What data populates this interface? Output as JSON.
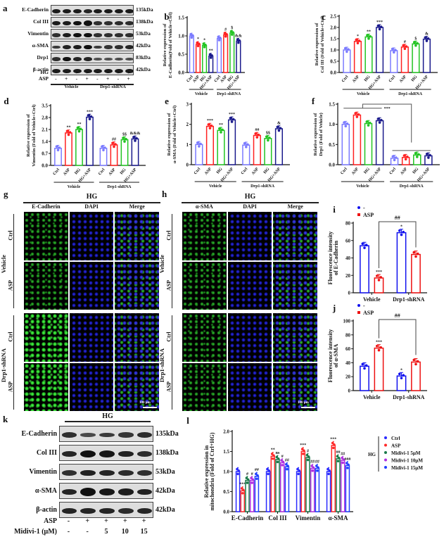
{
  "panel_a": {
    "label": "a",
    "proteins": [
      "E-Cadherin",
      "Col III",
      "Vimentin",
      "α-SMA",
      "Drp1",
      "β-actin"
    ],
    "kda": [
      "135kDa",
      "138kDa",
      "53kDa",
      "42kDa",
      "83kDa",
      "42kDa"
    ],
    "rows": [
      {
        "name": "HG",
        "values": [
          "-",
          "-",
          "+",
          "+",
          "-",
          "-",
          "+",
          "+"
        ]
      },
      {
        "name": "ASP",
        "values": [
          "-",
          "+",
          "-",
          "+",
          "-",
          "+",
          "-",
          "+"
        ]
      }
    ],
    "groups": [
      "Vehicle",
      "Drp1-shRNA"
    ]
  },
  "panel_g": {
    "label": "g",
    "header": "HG",
    "columns": [
      "E-Cadherin",
      "DAPI",
      "Merge"
    ],
    "rows": [
      "Ctrl",
      "ASP",
      "Ctrl",
      "ASP"
    ],
    "groups": [
      "Vehicle",
      "Drp1-shRNA"
    ],
    "scale": "100 μm"
  },
  "panel_h": {
    "label": "h",
    "header": "HG",
    "columns": [
      "α-SMA",
      "DAPI",
      "Merge"
    ],
    "rows": [
      "Ctrl",
      "ASP",
      "Ctrl",
      "ASP"
    ],
    "groups": [
      "Vehicle",
      "Drp1-shRNA"
    ],
    "scale": "100 μm"
  },
  "panel_k": {
    "label": "k",
    "header": "HG",
    "proteins": [
      "E-Cadherin",
      "Col III",
      "Vimentin",
      "α-SMA",
      "β-actin"
    ],
    "kda": [
      "135kDa",
      "138kDa",
      "53kDa",
      "42kDa",
      "42kDa"
    ],
    "rows": [
      {
        "name": "ASP",
        "values": [
          "-",
          "+",
          "+",
          "+",
          "+"
        ]
      },
      {
        "name": "Midivi-1 (μM)",
        "values": [
          "-",
          "-",
          "5",
          "10",
          "15"
        ]
      }
    ]
  },
  "chart_data": [
    {
      "panel": "b",
      "type": "bar",
      "categories": [
        "Ctrl",
        "ASP",
        "HG",
        "HG+ASP",
        "Ctrl",
        "ASP",
        "HG",
        "HG+ASP"
      ],
      "groups": [
        "Vehicle",
        "Drp1-shRNA"
      ],
      "values": [
        1.0,
        0.77,
        0.74,
        0.45,
        0.93,
        1.03,
        1.08,
        0.86
      ],
      "significance": [
        "",
        "*",
        "*",
        "**",
        "",
        "#",
        "$",
        "&&"
      ],
      "colors": [
        "#7b7bff",
        "#ff2020",
        "#22c422",
        "#1a1a8c",
        "#7b7bff",
        "#ff2020",
        "#22c422",
        "#1a1a8c"
      ],
      "ylabel": [
        "Relative expression of",
        "E-Cadherin(Fold of Vehicle+Ctrl)"
      ],
      "ylim": [
        0,
        1.5
      ],
      "yticks": [
        "0.0",
        "0.5",
        "1.0",
        "1.5"
      ]
    },
    {
      "panel": "c",
      "type": "bar",
      "categories": [
        "Ctrl",
        "ASP",
        "HG",
        "HG+ASP",
        "Ctrl",
        "ASP",
        "HG",
        "HG+ASP"
      ],
      "groups": [
        "Vehicle",
        "Drp1-shRNA"
      ],
      "values": [
        1.0,
        1.38,
        1.58,
        2.0,
        0.97,
        1.13,
        1.27,
        1.48
      ],
      "significance": [
        "",
        "*",
        "**",
        "***",
        "",
        "#",
        "$",
        "&"
      ],
      "colors": [
        "#7b7bff",
        "#ff2020",
        "#22c422",
        "#1a1a8c",
        "#7b7bff",
        "#ff2020",
        "#22c422",
        "#1a1a8c"
      ],
      "ylabel": [
        "Relative expression of",
        "Col III (Fold of Vehicle+Ctrl)"
      ],
      "ylim": [
        0,
        2.5
      ],
      "yticks": [
        "0.0",
        "0.5",
        "1.0",
        "1.5",
        "2.0",
        "2.5"
      ]
    },
    {
      "panel": "d",
      "type": "bar",
      "categories": [
        "Ctrl",
        "ASP",
        "HG",
        "HG+ASP",
        "Ctrl",
        "ASP",
        "HG",
        "HG+ASP"
      ],
      "groups": [
        "Vehicle",
        "Drp1-shRNA"
      ],
      "values": [
        1.0,
        1.9,
        2.1,
        2.82,
        1.0,
        1.2,
        1.5,
        1.55
      ],
      "significance": [
        "",
        "**",
        "**",
        "***",
        "",
        "##",
        "$$",
        "&&&"
      ],
      "colors": [
        "#7b7bff",
        "#ff2020",
        "#22c422",
        "#1a1a8c",
        "#7b7bff",
        "#ff2020",
        "#22c422",
        "#1a1a8c"
      ],
      "ylabel": [
        "Relative expression of",
        "Vimentin (Fold of Vehicle+Ctrl)"
      ],
      "ylim": [
        0,
        3.5
      ],
      "yticks": [
        "0.0",
        "0.7",
        "1.4",
        "2.1",
        "2.8",
        "3.5"
      ]
    },
    {
      "panel": "e",
      "type": "bar",
      "categories": [
        "Ctrl",
        "ASP",
        "HG",
        "HG+ASP",
        "Ctrl",
        "ASP",
        "HG",
        "HG+ASP"
      ],
      "groups": [
        "Vehicle",
        "Drp1-shRNA"
      ],
      "values": [
        1.0,
        1.9,
        1.7,
        2.22,
        0.97,
        1.45,
        1.3,
        1.78
      ],
      "significance": [
        "",
        "***",
        "**",
        "***",
        "",
        "##",
        "$$",
        "&"
      ],
      "colors": [
        "#7b7bff",
        "#ff2020",
        "#22c422",
        "#1a1a8c",
        "#7b7bff",
        "#ff2020",
        "#22c422",
        "#1a1a8c"
      ],
      "ylabel": [
        "Relative expression of",
        "α-SMA (Fold of Vehicle+Ctrl)"
      ],
      "ylim": [
        0,
        3
      ],
      "yticks": [
        "0",
        "1",
        "2",
        "3"
      ]
    },
    {
      "panel": "f",
      "type": "bar",
      "categories": [
        "Ctrl",
        "ASP",
        "HG",
        "HG+ASP",
        "Ctrl",
        "ASP",
        "HG",
        "HG+ASP"
      ],
      "groups": [
        "Vehicle",
        "Drp1-shRNA"
      ],
      "values": [
        1.0,
        1.23,
        1.02,
        1.09,
        0.16,
        0.18,
        0.24,
        0.22
      ],
      "significance": [
        "",
        "",
        "",
        "",
        "",
        "",
        "",
        ""
      ],
      "colors": [
        "#7b7bff",
        "#ff2020",
        "#22c422",
        "#1a1a8c",
        "#7b7bff",
        "#ff2020",
        "#22c422",
        "#1a1a8c"
      ],
      "ylabel": [
        "Relative expression of",
        "Drp1 (Fold of Vehicle)"
      ],
      "ylim": [
        0,
        1.5
      ],
      "yticks": [
        "0.0",
        "0.5",
        "1.0",
        "1.5"
      ],
      "annotation": "***"
    },
    {
      "panel": "i",
      "type": "bar",
      "categories": [
        "Vehicle",
        "Drp1-shRNA"
      ],
      "series": [
        {
          "name": "-",
          "values": [
            54,
            69
          ],
          "color": "#1010ee",
          "significance": [
            "",
            "*"
          ]
        },
        {
          "name": "ASP",
          "values": [
            17,
            44
          ],
          "color": "#ee1010",
          "significance": [
            "***",
            ""
          ]
        }
      ],
      "bracket": "##",
      "ylabel": [
        "Fluorescence intensity",
        "of E-Cadherin"
      ],
      "ylim": [
        0,
        80
      ],
      "yticks": [
        "0",
        "20",
        "40",
        "60",
        "80"
      ],
      "legend": "top-left"
    },
    {
      "panel": "j",
      "type": "bar",
      "categories": [
        "Vehicle",
        "Drp1-shRNA"
      ],
      "series": [
        {
          "name": "-",
          "values": [
            35,
            21
          ],
          "color": "#1010ee",
          "significance": [
            "",
            "*"
          ]
        },
        {
          "name": "ASP",
          "values": [
            61,
            41
          ],
          "color": "#ee1010",
          "significance": [
            "***",
            ""
          ]
        }
      ],
      "bracket": "##",
      "ylabel": [
        "Fluorescence intensity",
        "of α-SMA"
      ],
      "ylim": [
        0,
        100
      ],
      "yticks": [
        "0",
        "20",
        "40",
        "60",
        "80",
        "100"
      ],
      "legend": "top-left"
    },
    {
      "panel": "l",
      "type": "bar",
      "categories": [
        "E-Cadherin",
        "Col III",
        "Vimentin",
        "α-SMA"
      ],
      "series": [
        {
          "name": "Ctrl",
          "values": [
            1.0,
            1.0,
            1.0,
            1.0
          ],
          "color": "#2a2aff",
          "significance": [
            "",
            "",
            "",
            ""
          ]
        },
        {
          "name": "ASP",
          "values": [
            0.52,
            1.38,
            1.5,
            1.65
          ],
          "color": "#ff2a2a",
          "significance": [
            "***",
            "**",
            "***",
            "***"
          ]
        },
        {
          "name": "Midivi-1 5μM",
          "values": [
            0.78,
            1.3,
            1.35,
            1.32
          ],
          "color": "#1a7a4a",
          "significance": [
            "#",
            "ns",
            "#",
            "##"
          ]
        },
        {
          "name": "Midivi-1 10μM",
          "values": [
            0.78,
            1.22,
            1.08,
            1.28
          ],
          "color": "#b030e0",
          "significance": [
            "#",
            "#",
            "##",
            "##"
          ]
        },
        {
          "name": "Midivi-1 15μM",
          "values": [
            0.88,
            1.12,
            1.08,
            1.15
          ],
          "color": "#2040ff",
          "significance": [
            "##",
            "##",
            "##",
            "###"
          ]
        }
      ],
      "legend_group": "HG",
      "ylabel": [
        "Relative expression in",
        "mitochondria (Fold of Ctrl+HG)"
      ],
      "ylim": [
        0,
        2
      ],
      "yticks": [
        "0.0",
        "0.5",
        "1.0",
        "1.5",
        "2.0"
      ],
      "legend": "right"
    }
  ]
}
